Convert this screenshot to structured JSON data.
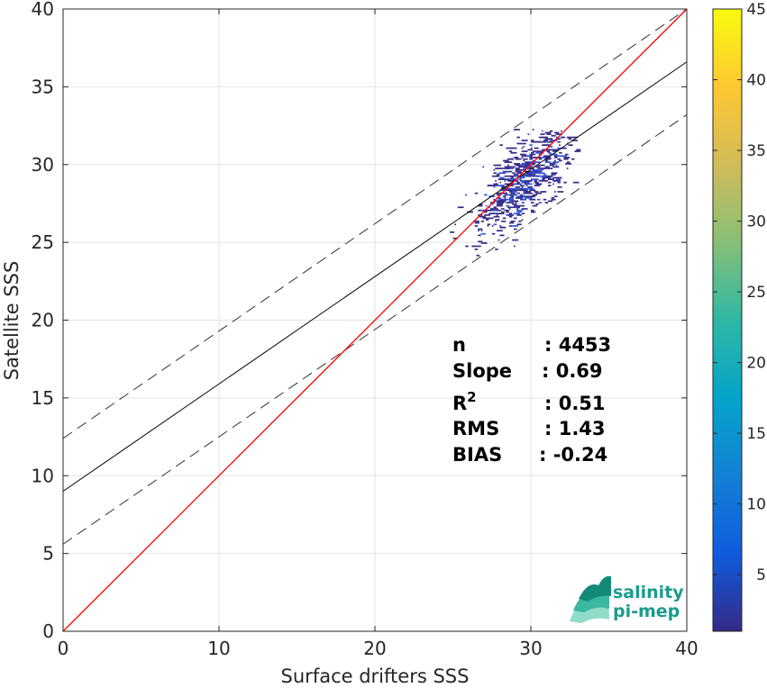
{
  "chart_data": {
    "type": "heatmap",
    "xlabel": "Surface drifters SSS",
    "ylabel": "Satellite SSS",
    "xlim": [
      0,
      40
    ],
    "ylim": [
      0,
      40
    ],
    "xticks": [
      "0",
      "10",
      "20",
      "30",
      "40"
    ],
    "yticks": [
      "0",
      "5",
      "10",
      "15",
      "20",
      "25",
      "30",
      "35",
      "40"
    ],
    "grid": true,
    "stats": [
      {
        "label": "n",
        "value": ": 4453"
      },
      {
        "label": "Slope",
        "value": ": 0.69"
      },
      {
        "label": "R",
        "sup": "2",
        "value": ": 0.51"
      },
      {
        "label": "RMS",
        "value": ": 1.43"
      },
      {
        "label": "BIAS",
        "value": ": -0.24"
      }
    ],
    "lines": {
      "one_to_one": {
        "intercept": 0,
        "slope": 1,
        "color": "#ff0000"
      },
      "regression": {
        "intercept": 9.0,
        "slope": 0.69,
        "color": "#000000"
      },
      "upper_bound": {
        "intercept": 12.4,
        "slope": 0.69,
        "style": "dashed"
      },
      "lower_bound": {
        "intercept": 5.6,
        "slope": 0.69,
        "style": "dashed"
      }
    },
    "colorbar": {
      "range": [
        1,
        45
      ],
      "ticks": [
        "5",
        "10",
        "15",
        "20",
        "25",
        "30",
        "35",
        "40",
        "45"
      ],
      "colormap": "parula",
      "colors": [
        "#352a87",
        "#0f5cdd",
        "#1481d6",
        "#06a4ca",
        "#2eb7a4",
        "#87bf77",
        "#d1bb59",
        "#fec832",
        "#f9fb0e"
      ]
    },
    "density_cloud": {
      "x_range": [
        23.5,
        33
      ],
      "y_range": [
        23.5,
        32.5
      ],
      "center": [
        29.5,
        29.0
      ],
      "typical_count": [
        1,
        4
      ],
      "color_low": "#352a87",
      "color_high": "#2c57e0"
    }
  },
  "logo": {
    "line1": "salinity",
    "line2": "pi-mep"
  }
}
